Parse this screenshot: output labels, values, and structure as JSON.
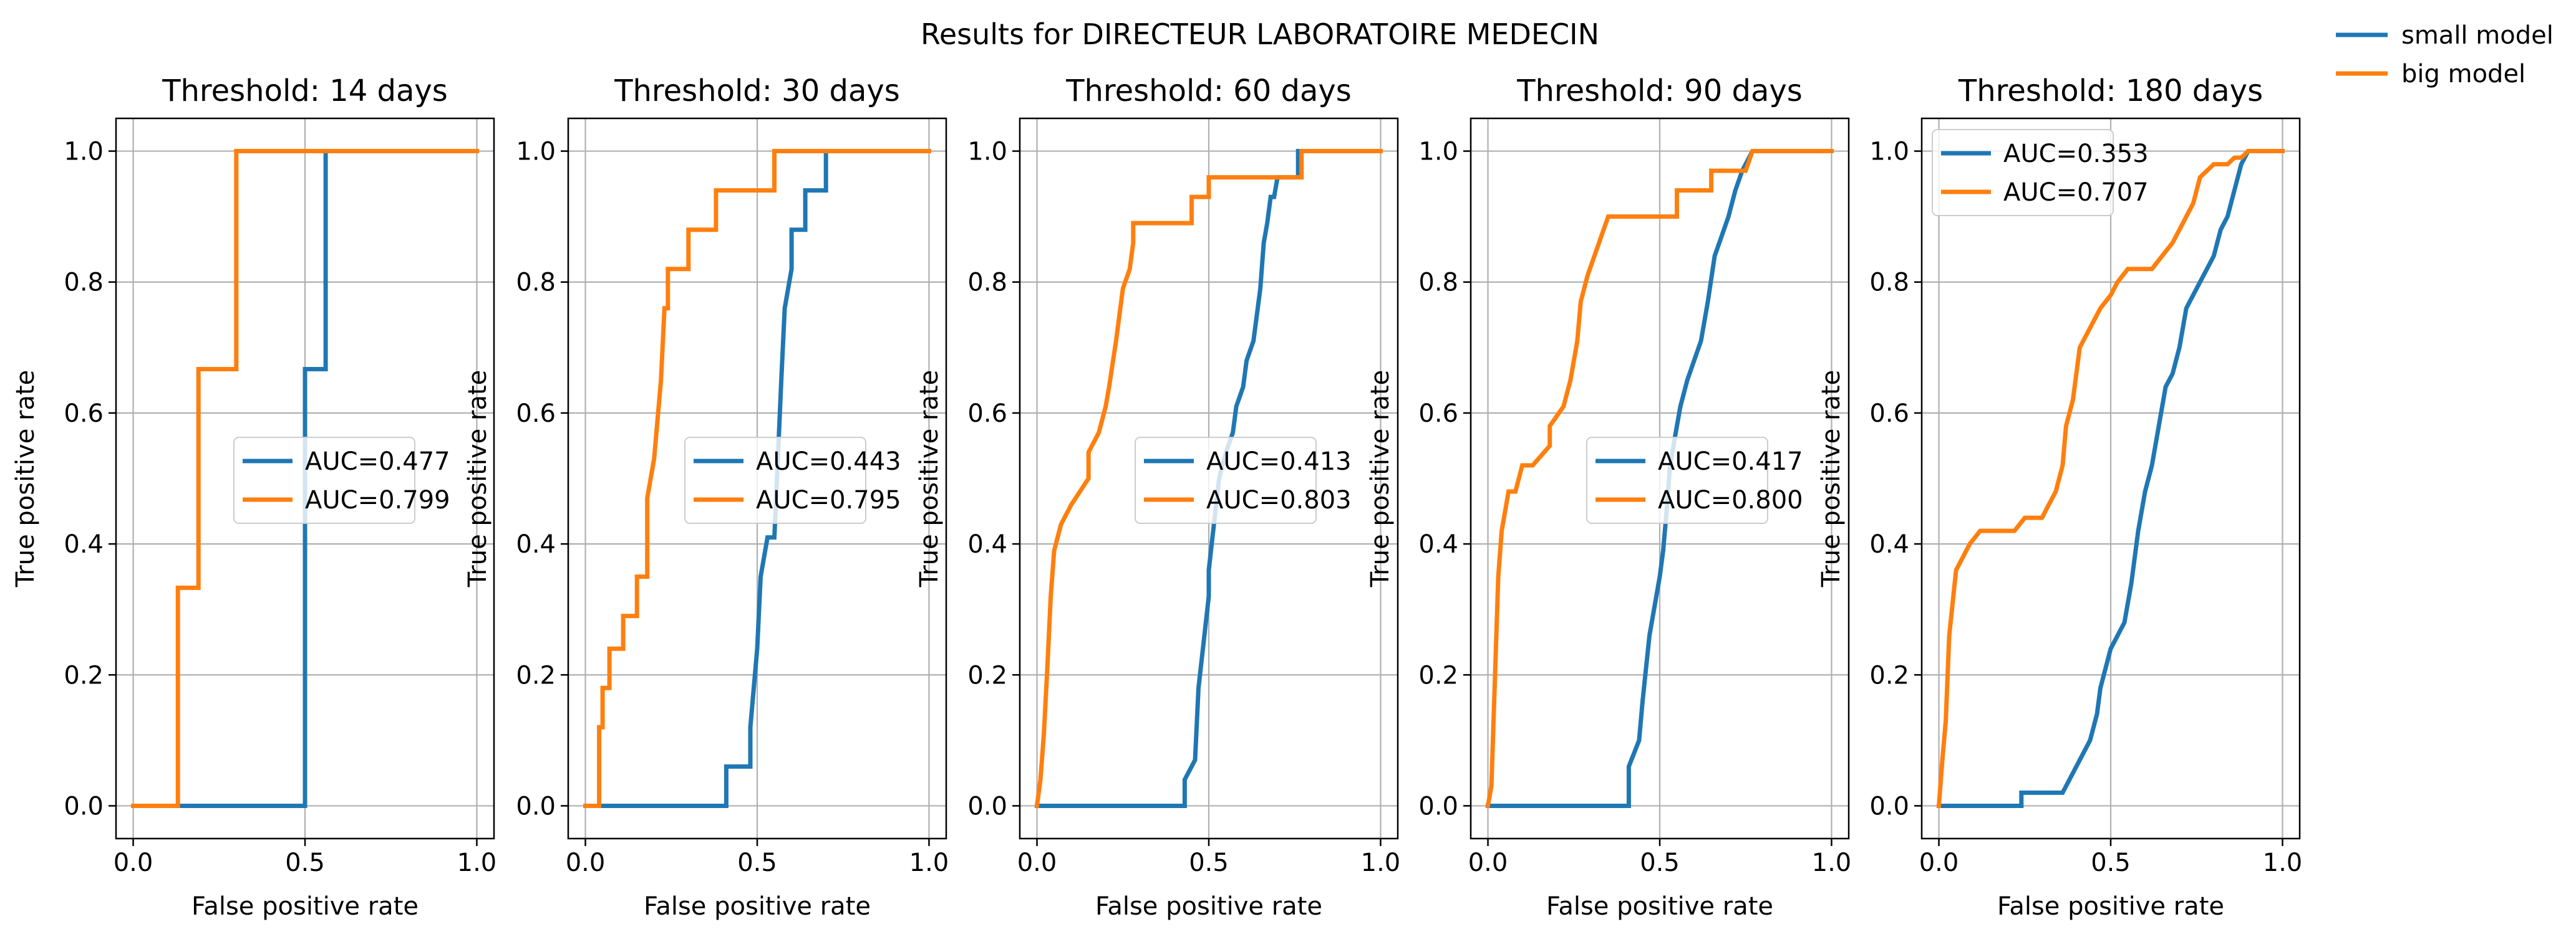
{
  "figure": {
    "title": "Results for DIRECTEUR LABORATOIRE MEDECIN",
    "legend_position": "top-right, outside panels",
    "legend": [
      {
        "label": "small model",
        "color": "#1f77b4"
      },
      {
        "label": "big model",
        "color": "#ff7f0e"
      }
    ]
  },
  "chart_data": [
    {
      "type": "line",
      "title": "Threshold: 14 days",
      "xlabel": "False positive rate",
      "ylabel": "True positive rate",
      "xlim": [
        -0.05,
        1.05
      ],
      "ylim": [
        -0.05,
        1.05
      ],
      "xticks": [
        "0.0",
        "0.5",
        "1.0"
      ],
      "yticks": [
        "0.0",
        "0.2",
        "0.4",
        "0.6",
        "0.8",
        "1.0"
      ],
      "grid": true,
      "legend_position": "center right",
      "series": [
        {
          "label": "AUC=0.477",
          "color": "#1f77b4",
          "x": [
            0.0,
            0.5,
            0.5,
            0.5,
            0.5,
            0.5,
            0.56,
            0.56,
            1.0
          ],
          "y": [
            0.0,
            0.0,
            0.33,
            0.33,
            0.667,
            0.667,
            0.667,
            1.0,
            1.0
          ]
        },
        {
          "label": "AUC=0.799",
          "color": "#ff7f0e",
          "x": [
            0.0,
            0.13,
            0.13,
            0.19,
            0.19,
            0.3,
            0.3,
            1.0
          ],
          "y": [
            0.0,
            0.0,
            0.333,
            0.333,
            0.667,
            0.667,
            1.0,
            1.0
          ]
        }
      ]
    },
    {
      "type": "line",
      "title": "Threshold: 30 days",
      "xlabel": "False positive rate",
      "ylabel": "True positive rate",
      "xlim": [
        -0.05,
        1.05
      ],
      "ylim": [
        -0.05,
        1.05
      ],
      "xticks": [
        "0.0",
        "0.5",
        "1.0"
      ],
      "yticks": [
        "0.0",
        "0.2",
        "0.4",
        "0.6",
        "0.8",
        "1.0"
      ],
      "grid": true,
      "legend_position": "center right",
      "series": [
        {
          "label": "AUC=0.443",
          "color": "#1f77b4",
          "x": [
            0.0,
            0.41,
            0.41,
            0.48,
            0.48,
            0.5,
            0.51,
            0.53,
            0.55,
            0.56,
            0.57,
            0.58,
            0.6,
            0.6,
            0.64,
            0.64,
            0.7,
            0.7,
            0.73,
            0.73,
            1.0
          ],
          "y": [
            0.0,
            0.0,
            0.06,
            0.06,
            0.12,
            0.24,
            0.35,
            0.41,
            0.41,
            0.53,
            0.65,
            0.76,
            0.82,
            0.88,
            0.88,
            0.94,
            0.94,
            1.0,
            1.0,
            1.0,
            1.0
          ]
        },
        {
          "label": "AUC=0.795",
          "color": "#ff7f0e",
          "x": [
            0.0,
            0.04,
            0.04,
            0.05,
            0.05,
            0.07,
            0.07,
            0.11,
            0.11,
            0.15,
            0.15,
            0.18,
            0.18,
            0.2,
            0.21,
            0.22,
            0.23,
            0.24,
            0.24,
            0.3,
            0.3,
            0.38,
            0.38,
            0.55,
            0.55,
            1.0
          ],
          "y": [
            0.0,
            0.0,
            0.12,
            0.12,
            0.18,
            0.18,
            0.24,
            0.24,
            0.29,
            0.29,
            0.35,
            0.35,
            0.47,
            0.53,
            0.59,
            0.65,
            0.76,
            0.76,
            0.82,
            0.82,
            0.88,
            0.88,
            0.94,
            0.94,
            1.0,
            1.0
          ]
        }
      ]
    },
    {
      "type": "line",
      "title": "Threshold: 60 days",
      "xlabel": "False positive rate",
      "ylabel": "True positive rate",
      "xlim": [
        -0.05,
        1.05
      ],
      "ylim": [
        -0.05,
        1.05
      ],
      "xticks": [
        "0.0",
        "0.5",
        "1.0"
      ],
      "yticks": [
        "0.0",
        "0.2",
        "0.4",
        "0.6",
        "0.8",
        "1.0"
      ],
      "grid": true,
      "legend_position": "center right",
      "series": [
        {
          "label": "AUC=0.413",
          "color": "#1f77b4",
          "x": [
            0.0,
            0.43,
            0.43,
            0.46,
            0.47,
            0.5,
            0.5,
            0.53,
            0.55,
            0.57,
            0.58,
            0.6,
            0.61,
            0.63,
            0.65,
            0.66,
            0.67,
            0.68,
            0.69,
            0.7,
            0.7,
            0.76,
            0.76,
            1.0
          ],
          "y": [
            0.0,
            0.0,
            0.04,
            0.07,
            0.18,
            0.32,
            0.36,
            0.5,
            0.54,
            0.57,
            0.61,
            0.64,
            0.68,
            0.71,
            0.79,
            0.86,
            0.89,
            0.93,
            0.93,
            0.96,
            0.96,
            0.96,
            1.0,
            1.0
          ]
        },
        {
          "label": "AUC=0.803",
          "color": "#ff7f0e",
          "x": [
            0.0,
            0.01,
            0.02,
            0.03,
            0.04,
            0.05,
            0.07,
            0.1,
            0.1,
            0.15,
            0.15,
            0.18,
            0.2,
            0.21,
            0.23,
            0.25,
            0.27,
            0.28,
            0.28,
            0.45,
            0.45,
            0.5,
            0.5,
            0.55,
            0.55,
            0.77,
            0.77,
            1.0
          ],
          "y": [
            0.0,
            0.04,
            0.11,
            0.21,
            0.32,
            0.39,
            0.43,
            0.46,
            0.46,
            0.5,
            0.54,
            0.57,
            0.61,
            0.64,
            0.71,
            0.79,
            0.82,
            0.86,
            0.89,
            0.89,
            0.93,
            0.93,
            0.96,
            0.96,
            0.96,
            0.96,
            1.0,
            1.0
          ]
        }
      ]
    },
    {
      "type": "line",
      "title": "Threshold: 90 days",
      "xlabel": "False positive rate",
      "ylabel": "True positive rate",
      "xlim": [
        -0.05,
        1.05
      ],
      "ylim": [
        -0.05,
        1.05
      ],
      "xticks": [
        "0.0",
        "0.5",
        "1.0"
      ],
      "yticks": [
        "0.0",
        "0.2",
        "0.4",
        "0.6",
        "0.8",
        "1.0"
      ],
      "grid": true,
      "legend_position": "center right",
      "series": [
        {
          "label": "AUC=0.417",
          "color": "#1f77b4",
          "x": [
            0.0,
            0.41,
            0.41,
            0.44,
            0.45,
            0.47,
            0.48,
            0.5,
            0.51,
            0.52,
            0.53,
            0.55,
            0.56,
            0.58,
            0.6,
            0.62,
            0.64,
            0.66,
            0.68,
            0.7,
            0.72,
            0.74,
            0.75,
            0.77,
            0.78,
            0.78,
            1.0
          ],
          "y": [
            0.0,
            0.0,
            0.06,
            0.1,
            0.16,
            0.26,
            0.29,
            0.35,
            0.39,
            0.45,
            0.52,
            0.58,
            0.61,
            0.65,
            0.68,
            0.71,
            0.77,
            0.84,
            0.87,
            0.9,
            0.94,
            0.97,
            0.98,
            1.0,
            1.0,
            1.0,
            1.0
          ]
        },
        {
          "label": "AUC=0.800",
          "color": "#ff7f0e",
          "x": [
            0.0,
            0.01,
            0.02,
            0.03,
            0.04,
            0.05,
            0.06,
            0.08,
            0.1,
            0.13,
            0.13,
            0.18,
            0.18,
            0.22,
            0.24,
            0.26,
            0.27,
            0.29,
            0.31,
            0.33,
            0.35,
            0.4,
            0.44,
            0.47,
            0.5,
            0.55,
            0.55,
            0.65,
            0.65,
            0.75,
            0.77,
            1.0
          ],
          "y": [
            0.0,
            0.03,
            0.19,
            0.35,
            0.42,
            0.45,
            0.48,
            0.48,
            0.52,
            0.52,
            0.52,
            0.55,
            0.58,
            0.61,
            0.65,
            0.71,
            0.77,
            0.81,
            0.84,
            0.87,
            0.9,
            0.9,
            0.9,
            0.9,
            0.9,
            0.9,
            0.94,
            0.94,
            0.97,
            0.97,
            1.0,
            1.0
          ]
        }
      ]
    },
    {
      "type": "line",
      "title": "Threshold: 180 days",
      "xlabel": "False positive rate",
      "ylabel": "True positive rate",
      "xlim": [
        -0.05,
        1.05
      ],
      "ylim": [
        -0.05,
        1.05
      ],
      "xticks": [
        "0.0",
        "0.5",
        "1.0"
      ],
      "yticks": [
        "0.0",
        "0.2",
        "0.4",
        "0.6",
        "0.8",
        "1.0"
      ],
      "grid": true,
      "legend_position": "upper left",
      "series": [
        {
          "label": "AUC=0.353",
          "color": "#1f77b4",
          "x": [
            0.0,
            0.24,
            0.24,
            0.36,
            0.38,
            0.4,
            0.42,
            0.44,
            0.46,
            0.47,
            0.49,
            0.5,
            0.52,
            0.54,
            0.56,
            0.58,
            0.6,
            0.62,
            0.64,
            0.66,
            0.68,
            0.7,
            0.72,
            0.74,
            0.76,
            0.78,
            0.8,
            0.82,
            0.84,
            0.86,
            0.88,
            0.9,
            1.0
          ],
          "y": [
            0.0,
            0.0,
            0.02,
            0.02,
            0.04,
            0.06,
            0.08,
            0.1,
            0.14,
            0.18,
            0.22,
            0.24,
            0.26,
            0.28,
            0.34,
            0.42,
            0.48,
            0.52,
            0.58,
            0.64,
            0.66,
            0.7,
            0.76,
            0.78,
            0.8,
            0.82,
            0.84,
            0.88,
            0.9,
            0.94,
            0.98,
            1.0,
            1.0
          ]
        },
        {
          "label": "AUC=0.707",
          "color": "#ff7f0e",
          "x": [
            0.0,
            0.01,
            0.02,
            0.03,
            0.05,
            0.07,
            0.09,
            0.12,
            0.22,
            0.25,
            0.3,
            0.32,
            0.34,
            0.36,
            0.37,
            0.39,
            0.4,
            0.41,
            0.43,
            0.45,
            0.47,
            0.5,
            0.52,
            0.55,
            0.58,
            0.62,
            0.65,
            0.68,
            0.7,
            0.72,
            0.74,
            0.76,
            0.8,
            0.84,
            0.86,
            0.88,
            0.9,
            1.0
          ],
          "y": [
            0.0,
            0.07,
            0.13,
            0.26,
            0.36,
            0.38,
            0.4,
            0.42,
            0.42,
            0.44,
            0.44,
            0.46,
            0.48,
            0.52,
            0.58,
            0.62,
            0.66,
            0.7,
            0.72,
            0.74,
            0.76,
            0.78,
            0.8,
            0.82,
            0.82,
            0.82,
            0.84,
            0.86,
            0.88,
            0.9,
            0.92,
            0.96,
            0.98,
            0.98,
            0.99,
            0.99,
            1.0,
            1.0
          ]
        }
      ]
    }
  ]
}
